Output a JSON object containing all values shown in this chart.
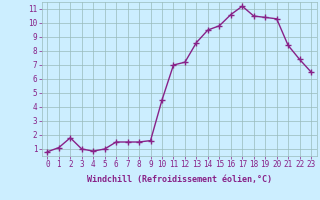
{
  "x": [
    0,
    1,
    2,
    3,
    4,
    5,
    6,
    7,
    8,
    9,
    10,
    11,
    12,
    13,
    14,
    15,
    16,
    17,
    18,
    19,
    20,
    21,
    22,
    23
  ],
  "y": [
    0.8,
    1.1,
    1.8,
    1.0,
    0.85,
    1.0,
    1.5,
    1.5,
    1.5,
    1.6,
    4.5,
    7.0,
    7.2,
    8.6,
    9.5,
    9.8,
    10.6,
    11.2,
    10.5,
    10.4,
    10.3,
    8.4,
    7.4,
    6.5
  ],
  "line_color": "#882288",
  "marker": "+",
  "marker_size": 4,
  "linewidth": 1.0,
  "bg_color": "#cceeff",
  "grid_color": "#99bbbb",
  "xlabel": "Windchill (Refroidissement éolien,°C)",
  "xlabel_color": "#882288",
  "xlabel_fontsize": 6.0,
  "tick_color": "#882288",
  "tick_fontsize": 5.5,
  "ylim": [
    0.5,
    11.5
  ],
  "xlim": [
    -0.5,
    23.5
  ],
  "yticks": [
    1,
    2,
    3,
    4,
    5,
    6,
    7,
    8,
    9,
    10,
    11
  ],
  "xticks": [
    0,
    1,
    2,
    3,
    4,
    5,
    6,
    7,
    8,
    9,
    10,
    11,
    12,
    13,
    14,
    15,
    16,
    17,
    18,
    19,
    20,
    21,
    22,
    23
  ]
}
